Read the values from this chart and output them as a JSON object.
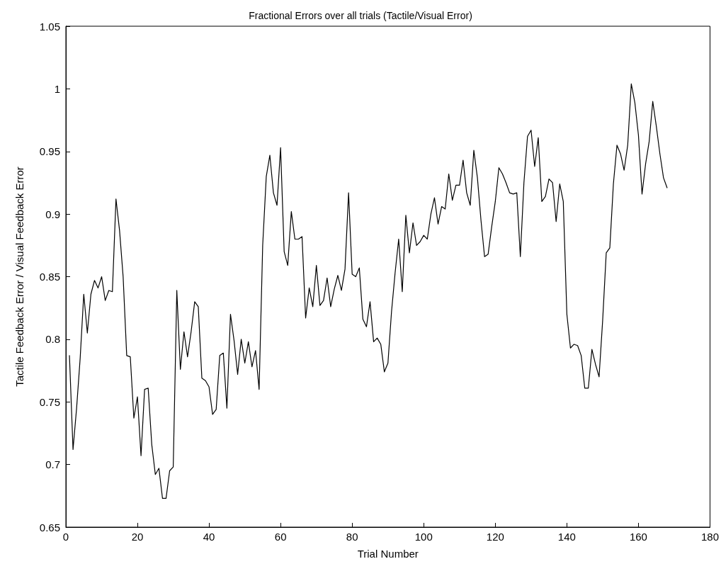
{
  "chart_data": {
    "type": "line",
    "title": "Fractional Errors over all trials (Tactile/Visual Error)",
    "xlabel": "Trial Number",
    "ylabel": "Tactile Feedback Error / Visual Feedback Error",
    "x": [
      1,
      2,
      3,
      4,
      5,
      6,
      7,
      8,
      9,
      10,
      11,
      12,
      13,
      14,
      15,
      16,
      17,
      18,
      19,
      20,
      21,
      22,
      23,
      24,
      25,
      26,
      27,
      28,
      29,
      30,
      31,
      32,
      33,
      34,
      35,
      36,
      37,
      38,
      39,
      40,
      41,
      42,
      43,
      44,
      45,
      46,
      47,
      48,
      49,
      50,
      51,
      52,
      53,
      54,
      55,
      56,
      57,
      58,
      59,
      60,
      61,
      62,
      63,
      64,
      65,
      66,
      67,
      68,
      69,
      70,
      71,
      72,
      73,
      74,
      75,
      76,
      77,
      78,
      79,
      80,
      81,
      82,
      83,
      84,
      85,
      86,
      87,
      88,
      89,
      90,
      91,
      92,
      93,
      94,
      95,
      96,
      97,
      98,
      99,
      100,
      101,
      102,
      103,
      104,
      105,
      106,
      107,
      108,
      109,
      110,
      111,
      112,
      113,
      114,
      115,
      116,
      117,
      118,
      119,
      120,
      121,
      122,
      123,
      124,
      125,
      126,
      127,
      128,
      129,
      130,
      131,
      132,
      133,
      134,
      135,
      136,
      137,
      138,
      139,
      140,
      141,
      142,
      143,
      144,
      145,
      146,
      147,
      148,
      149,
      150,
      151,
      152,
      153,
      154,
      155,
      156,
      157,
      158,
      159,
      160,
      161,
      162,
      163,
      164,
      165,
      166,
      167,
      168
    ],
    "series": [
      {
        "color": "#000000",
        "values": [
          0.787,
          0.712,
          0.745,
          0.785,
          0.836,
          0.805,
          0.836,
          0.847,
          0.841,
          0.85,
          0.831,
          0.839,
          0.838,
          0.912,
          0.887,
          0.85,
          0.787,
          0.786,
          0.737,
          0.754,
          0.707,
          0.76,
          0.761,
          0.716,
          0.692,
          0.697,
          0.673,
          0.673,
          0.695,
          0.698,
          0.839,
          0.776,
          0.806,
          0.786,
          0.806,
          0.83,
          0.826,
          0.769,
          0.767,
          0.762,
          0.74,
          0.744,
          0.787,
          0.789,
          0.745,
          0.82,
          0.799,
          0.772,
          0.8,
          0.781,
          0.798,
          0.778,
          0.791,
          0.76,
          0.875,
          0.93,
          0.947,
          0.917,
          0.907,
          0.953,
          0.87,
          0.859,
          0.902,
          0.88,
          0.88,
          0.882,
          0.817,
          0.841,
          0.826,
          0.859,
          0.827,
          0.831,
          0.849,
          0.826,
          0.84,
          0.851,
          0.839,
          0.856,
          0.917,
          0.852,
          0.85,
          0.857,
          0.816,
          0.81,
          0.83,
          0.798,
          0.801,
          0.796,
          0.774,
          0.781,
          0.822,
          0.853,
          0.88,
          0.838,
          0.899,
          0.869,
          0.893,
          0.875,
          0.878,
          0.883,
          0.88,
          0.9,
          0.913,
          0.892,
          0.906,
          0.904,
          0.932,
          0.911,
          0.923,
          0.923,
          0.943,
          0.917,
          0.907,
          0.951,
          0.929,
          0.895,
          0.866,
          0.868,
          0.89,
          0.91,
          0.937,
          0.932,
          0.925,
          0.917,
          0.916,
          0.917,
          0.866,
          0.925,
          0.962,
          0.967,
          0.938,
          0.961,
          0.91,
          0.914,
          0.928,
          0.925,
          0.894,
          0.924,
          0.91,
          0.82,
          0.793,
          0.796,
          0.795,
          0.787,
          0.761,
          0.761,
          0.792,
          0.78,
          0.77,
          0.815,
          0.869,
          0.873,
          0.924,
          0.955,
          0.948,
          0.935,
          0.955,
          1.004,
          0.989,
          0.963,
          0.916,
          0.94,
          0.958,
          0.99,
          0.97,
          0.948,
          0.929,
          0.921
        ]
      }
    ],
    "xlim": [
      0,
      180
    ],
    "xticks": [
      0,
      20,
      40,
      60,
      80,
      100,
      120,
      140,
      160,
      180
    ],
    "ylim": [
      0.65,
      1.05
    ],
    "yticks": [
      0.65,
      0.7,
      0.75,
      0.8,
      0.85,
      0.9,
      0.95,
      1,
      1.05
    ],
    "grid": false,
    "marker": "none",
    "line_style": "solid"
  }
}
